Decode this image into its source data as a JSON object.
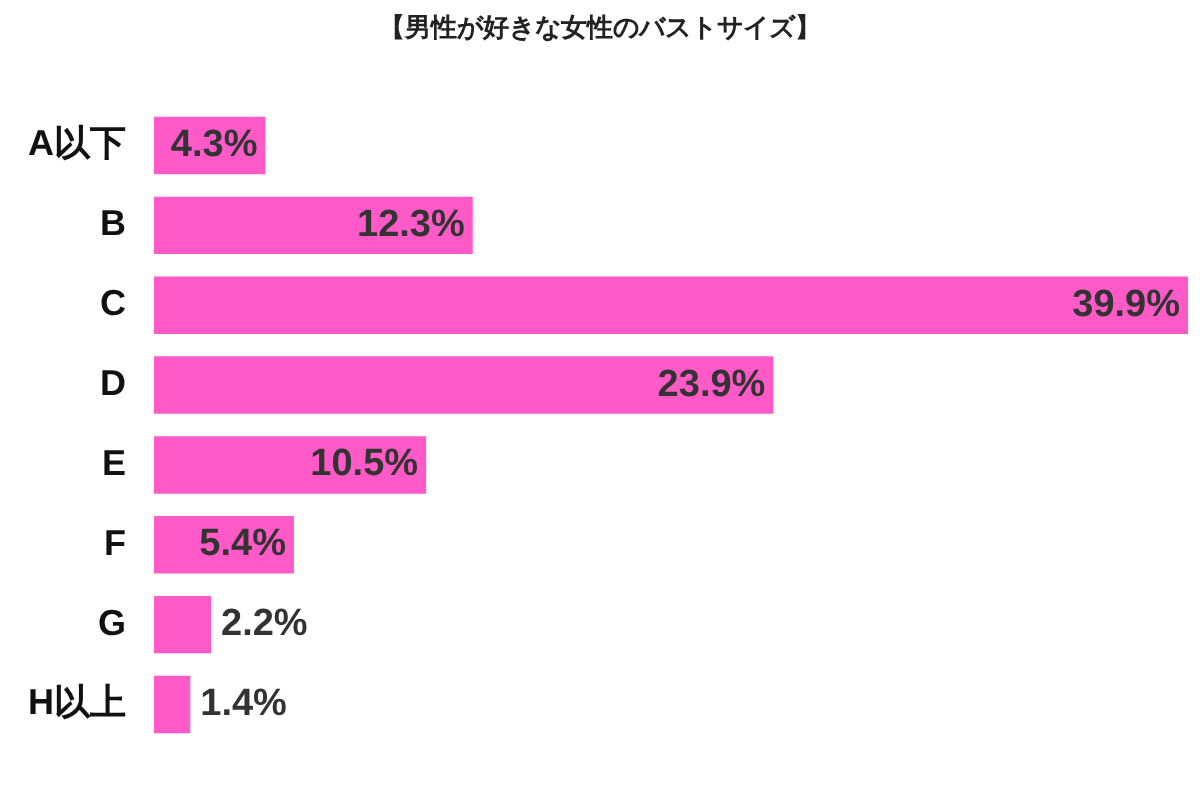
{
  "chart_data": {
    "type": "bar",
    "orientation": "horizontal",
    "title": "【男性が好きな女性のバストサイズ】",
    "categories": [
      "A以下",
      "B",
      "C",
      "D",
      "E",
      "F",
      "G",
      "H以上"
    ],
    "values": [
      4.3,
      12.3,
      39.9,
      23.9,
      10.5,
      5.4,
      2.2,
      1.4
    ],
    "value_labels": [
      "4.3%",
      "12.3%",
      "39.9%",
      "23.9%",
      "10.5%",
      "5.4%",
      "2.2%",
      "1.4%"
    ],
    "color": "#ff5ac8",
    "grid": false,
    "legend": false,
    "tick_labels": "y"
  }
}
